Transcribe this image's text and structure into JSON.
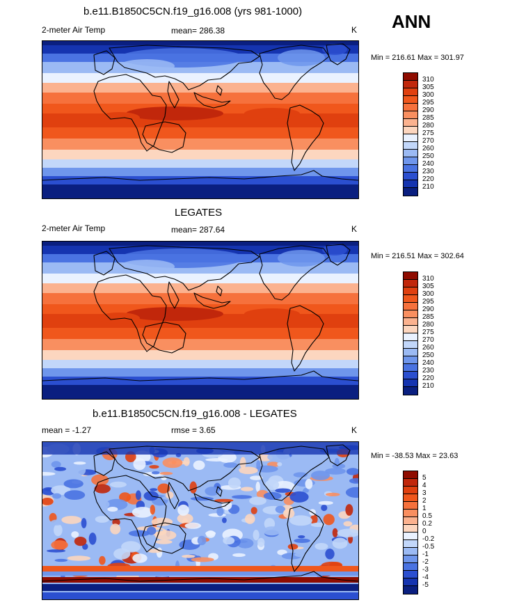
{
  "season": "ANN",
  "panels": [
    {
      "title": "b.e11.B1850C5CN.f19_g16.008 (yrs 981-1000)",
      "left_label": "2-meter Air Temp",
      "stat_label": "mean= 286.38",
      "units": "K",
      "minmax": "Min = 216.61 Max = 301.97",
      "kind": "abs",
      "colorbar": {
        "labels": [
          "310",
          "305",
          "300",
          "295",
          "290",
          "285",
          "280",
          "275",
          "270",
          "260",
          "250",
          "240",
          "230",
          "220",
          "210"
        ],
        "colors": [
          "#8f0c00",
          "#c1270b",
          "#e0400f",
          "#f0571c",
          "#f6713c",
          "#f98f60",
          "#fbb28f",
          "#fcd6bf",
          "#eaf2ff",
          "#c2d7fa",
          "#9bbaf4",
          "#6f96ec",
          "#4a73e2",
          "#2b4fd0",
          "#1534b0",
          "#0a1f80"
        ]
      }
    },
    {
      "title": "LEGATES",
      "left_label": "2-meter Air Temp",
      "stat_label": "mean= 287.64",
      "units": "K",
      "minmax": "Min = 216.51 Max = 302.64",
      "kind": "abs",
      "colorbar": {
        "labels": [
          "310",
          "305",
          "300",
          "295",
          "290",
          "285",
          "280",
          "275",
          "270",
          "260",
          "250",
          "240",
          "230",
          "220",
          "210"
        ],
        "colors": [
          "#8f0c00",
          "#c1270b",
          "#e0400f",
          "#f0571c",
          "#f6713c",
          "#f98f60",
          "#fbb28f",
          "#fcd6bf",
          "#eaf2ff",
          "#c2d7fa",
          "#9bbaf4",
          "#6f96ec",
          "#4a73e2",
          "#2b4fd0",
          "#1534b0",
          "#0a1f80"
        ]
      }
    },
    {
      "title": "b.e11.B1850C5CN.f19_g16.008 - LEGATES",
      "left_label": "mean =  -1.27",
      "stat_label": "rmse =   3.65",
      "units": "K",
      "minmax": "Min = -38.53 Max =  23.63",
      "kind": "diff",
      "colorbar": {
        "labels": [
          "5",
          "4",
          "3",
          "2",
          "1",
          "0.5",
          "0.2",
          "0",
          "-0.2",
          "-0.5",
          "-1",
          "-2",
          "-3",
          "-4",
          "-5"
        ],
        "colors": [
          "#8f0c00",
          "#c1270b",
          "#e0400f",
          "#f0571c",
          "#f6713c",
          "#f98f60",
          "#fbb28f",
          "#fcd6bf",
          "#eaf2ff",
          "#c2d7fa",
          "#9bbaf4",
          "#6f96ec",
          "#4a73e2",
          "#2b4fd0",
          "#1534b0",
          "#0a1f80"
        ]
      }
    }
  ]
}
